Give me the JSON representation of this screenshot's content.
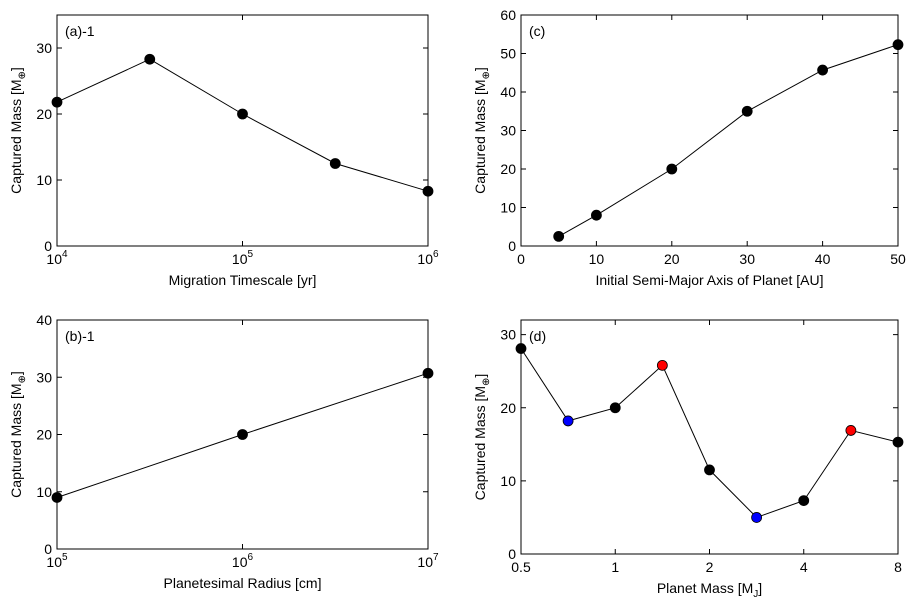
{
  "chart_data": [
    {
      "id": "a",
      "type": "line",
      "panel_label": "(a)-1",
      "xlabel": "Migration Timescale [yr]",
      "ylabel": "Captured Mass [M",
      "ylabel_sub": "⊕",
      "ylabel_end": "]",
      "xscale": "log",
      "xlim": [
        10000,
        1000000
      ],
      "ylim": [
        0,
        35
      ],
      "xticks": [
        {
          "v": 10000,
          "base": "10",
          "exp": "4"
        },
        {
          "v": 100000,
          "base": "10",
          "exp": "5"
        },
        {
          "v": 1000000,
          "base": "10",
          "exp": "6"
        }
      ],
      "yticks": [
        {
          "v": 0,
          "label": "0"
        },
        {
          "v": 10,
          "label": "10"
        },
        {
          "v": 20,
          "label": "20"
        },
        {
          "v": 30,
          "label": "30"
        }
      ],
      "points": [
        {
          "x": 10000,
          "y": 21.8,
          "color": "#000000"
        },
        {
          "x": 31623,
          "y": 28.3,
          "color": "#000000"
        },
        {
          "x": 100000,
          "y": 20.0,
          "color": "#000000"
        },
        {
          "x": 316228,
          "y": 12.5,
          "color": "#000000"
        },
        {
          "x": 1000000,
          "y": 8.3,
          "color": "#000000"
        }
      ]
    },
    {
      "id": "c",
      "type": "line",
      "panel_label": "(c)",
      "xlabel": "Initial Semi-Major Axis of Planet [AU]",
      "ylabel": "Captured Mass [M",
      "ylabel_sub": "⊕",
      "ylabel_end": "]",
      "xscale": "linear",
      "xlim": [
        0,
        50
      ],
      "ylim": [
        0,
        60
      ],
      "xticks": [
        {
          "v": 0,
          "label": "0"
        },
        {
          "v": 10,
          "label": "10"
        },
        {
          "v": 20,
          "label": "20"
        },
        {
          "v": 30,
          "label": "30"
        },
        {
          "v": 40,
          "label": "40"
        },
        {
          "v": 50,
          "label": "50"
        }
      ],
      "yticks": [
        {
          "v": 0,
          "label": "0"
        },
        {
          "v": 10,
          "label": "10"
        },
        {
          "v": 20,
          "label": "20"
        },
        {
          "v": 30,
          "label": "30"
        },
        {
          "v": 40,
          "label": "40"
        },
        {
          "v": 50,
          "label": "50"
        },
        {
          "v": 60,
          "label": "60"
        }
      ],
      "points": [
        {
          "x": 5,
          "y": 2.5,
          "color": "#000000"
        },
        {
          "x": 10,
          "y": 8.0,
          "color": "#000000"
        },
        {
          "x": 20,
          "y": 20.0,
          "color": "#000000"
        },
        {
          "x": 30,
          "y": 35.0,
          "color": "#000000"
        },
        {
          "x": 40,
          "y": 45.7,
          "color": "#000000"
        },
        {
          "x": 50,
          "y": 52.3,
          "color": "#000000"
        }
      ]
    },
    {
      "id": "b",
      "type": "line",
      "panel_label": "(b)-1",
      "xlabel": "Planetesimal Radius [cm]",
      "ylabel": "Captured Mass [M",
      "ylabel_sub": "⊕",
      "ylabel_end": "]",
      "xscale": "log",
      "xlim": [
        100000,
        10000000
      ],
      "ylim": [
        0,
        40
      ],
      "xticks": [
        {
          "v": 100000,
          "base": "10",
          "exp": "5"
        },
        {
          "v": 1000000,
          "base": "10",
          "exp": "6"
        },
        {
          "v": 10000000,
          "base": "10",
          "exp": "7"
        }
      ],
      "yticks": [
        {
          "v": 0,
          "label": "0"
        },
        {
          "v": 10,
          "label": "10"
        },
        {
          "v": 20,
          "label": "20"
        },
        {
          "v": 30,
          "label": "30"
        },
        {
          "v": 40,
          "label": "40"
        }
      ],
      "points": [
        {
          "x": 100000,
          "y": 9.0,
          "color": "#000000"
        },
        {
          "x": 1000000,
          "y": 20.0,
          "color": "#000000"
        },
        {
          "x": 10000000,
          "y": 30.7,
          "color": "#000000"
        }
      ]
    },
    {
      "id": "d",
      "type": "line",
      "panel_label": "(d)",
      "xlabel": "Planet Mass [M",
      "xlabel_sub": "J",
      "xlabel_end": "]",
      "ylabel": "Captured Mass [M",
      "ylabel_sub": "⊕",
      "ylabel_end": "]",
      "xscale": "log",
      "xlim": [
        0.5,
        8
      ],
      "ylim": [
        0,
        32
      ],
      "xticks": [
        {
          "v": 0.5,
          "label": "0.5"
        },
        {
          "v": 1,
          "label": "1"
        },
        {
          "v": 2,
          "label": "2"
        },
        {
          "v": 4,
          "label": "4"
        },
        {
          "v": 8,
          "label": "8"
        }
      ],
      "yticks": [
        {
          "v": 0,
          "label": "0"
        },
        {
          "v": 10,
          "label": "10"
        },
        {
          "v": 20,
          "label": "20"
        },
        {
          "v": 30,
          "label": "30"
        }
      ],
      "points": [
        {
          "x": 0.5,
          "y": 28.1,
          "color": "#000000"
        },
        {
          "x": 0.707,
          "y": 18.2,
          "color": "#0000ff"
        },
        {
          "x": 1,
          "y": 20.0,
          "color": "#000000"
        },
        {
          "x": 1.414,
          "y": 25.8,
          "color": "#ff0000"
        },
        {
          "x": 2,
          "y": 11.5,
          "color": "#000000"
        },
        {
          "x": 2.828,
          "y": 5.0,
          "color": "#0000ff"
        },
        {
          "x": 4,
          "y": 7.3,
          "color": "#000000"
        },
        {
          "x": 5.657,
          "y": 16.9,
          "color": "#ff0000"
        },
        {
          "x": 8,
          "y": 15.3,
          "color": "#000000"
        }
      ]
    }
  ]
}
